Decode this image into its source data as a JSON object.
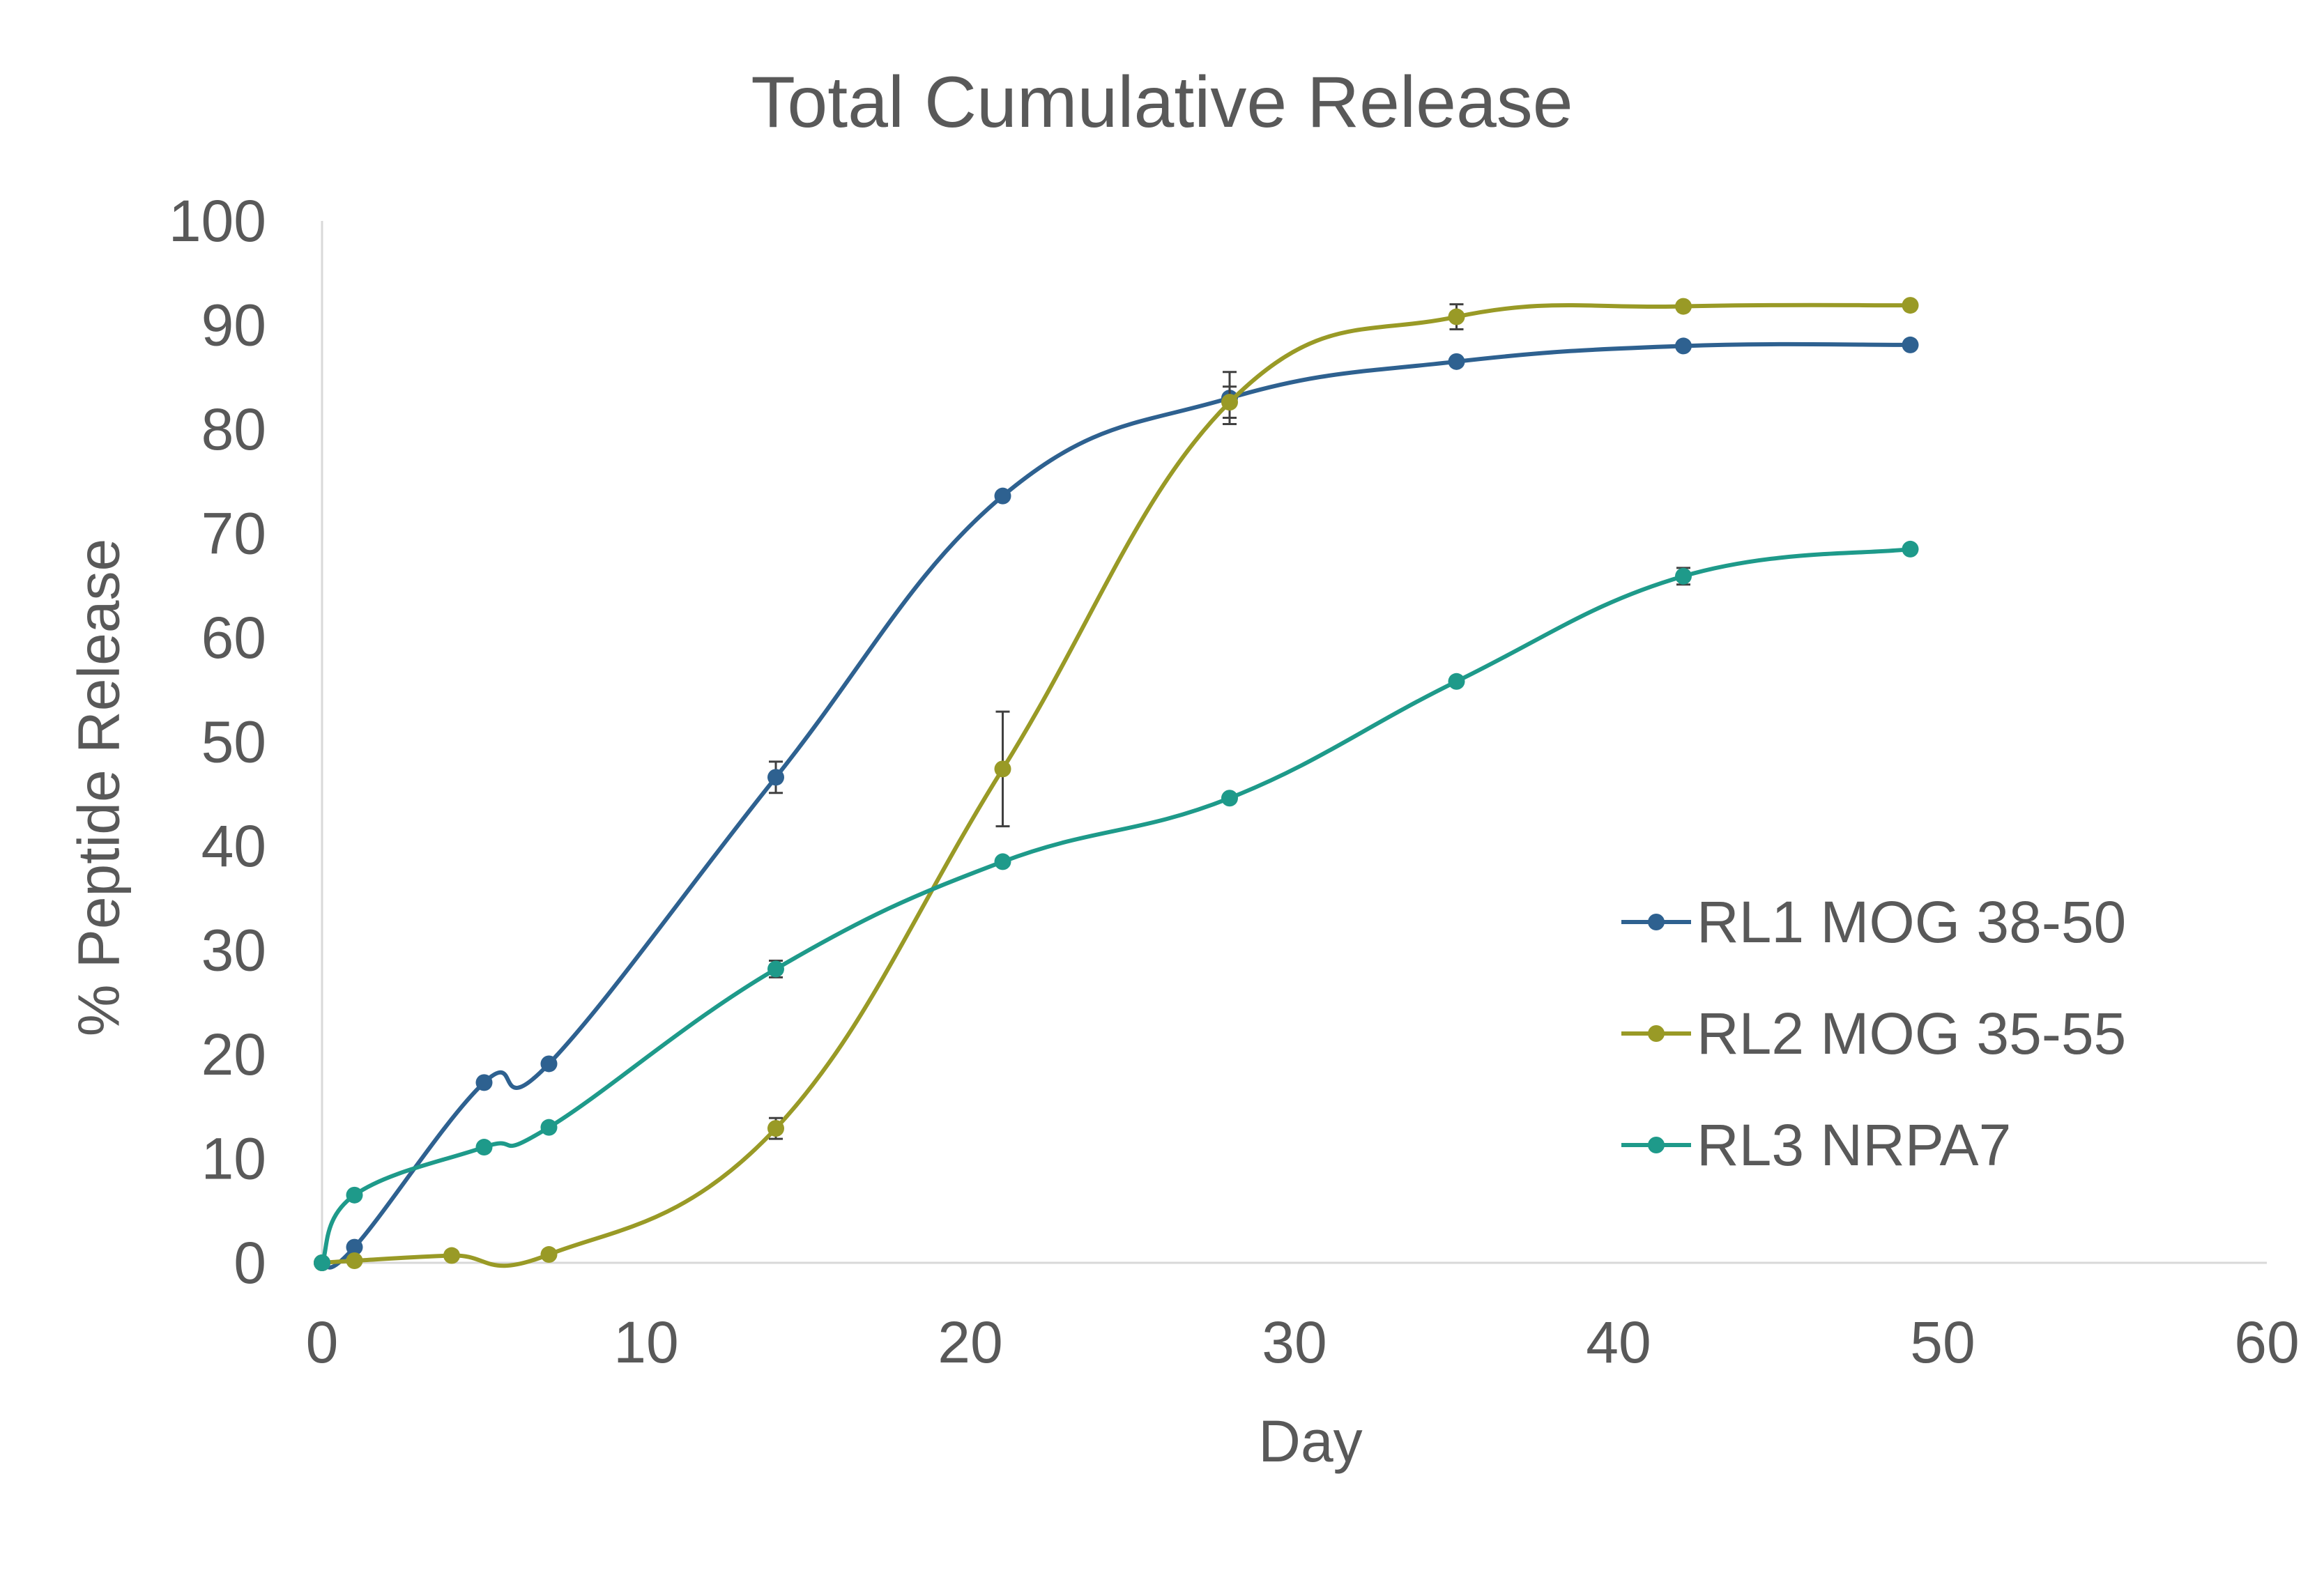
{
  "chart_data": {
    "type": "line",
    "title": "Total Cumulative Release",
    "xlabel": "Day",
    "ylabel": "% Peptide Release",
    "xlim": [
      0,
      60
    ],
    "ylim": [
      0,
      100
    ],
    "xticks": [
      0,
      10,
      20,
      30,
      40,
      50,
      60
    ],
    "yticks": [
      0,
      10,
      20,
      30,
      40,
      50,
      60,
      70,
      80,
      90,
      100
    ],
    "grid": false,
    "legend_position": "right",
    "series": [
      {
        "name": "RL1 MOG 38-50",
        "color": "#2E6190",
        "x": [
          0,
          1,
          5,
          7,
          14,
          21,
          28,
          35,
          42,
          49
        ],
        "y": [
          0,
          1.5,
          17.3,
          19.1,
          46.6,
          73.6,
          83.0,
          86.5,
          88.0,
          88.1
        ],
        "err": [
          0,
          0,
          0,
          0,
          1.5,
          0,
          2.5,
          0,
          0,
          0
        ]
      },
      {
        "name": "RL2 MOG 35-55",
        "color": "#999A26",
        "x": [
          0,
          1,
          4,
          7,
          14,
          21,
          28,
          35,
          42,
          49
        ],
        "y": [
          0,
          0.2,
          0.7,
          0.8,
          12.9,
          47.4,
          82.6,
          90.8,
          91.8,
          91.9
        ],
        "err": [
          0,
          0,
          0,
          0,
          1.0,
          5.5,
          1.5,
          1.2,
          0,
          0
        ]
      },
      {
        "name": "RL3 NRPA7",
        "color": "#1E9A8A",
        "x": [
          0,
          1,
          5,
          7,
          14,
          21,
          28,
          35,
          42,
          49
        ],
        "y": [
          0,
          6.5,
          11.1,
          13.0,
          28.2,
          38.5,
          44.6,
          55.8,
          65.9,
          68.5
        ],
        "err": [
          0,
          0,
          0,
          0,
          0.8,
          0,
          0,
          0,
          0.8,
          0
        ]
      }
    ]
  }
}
